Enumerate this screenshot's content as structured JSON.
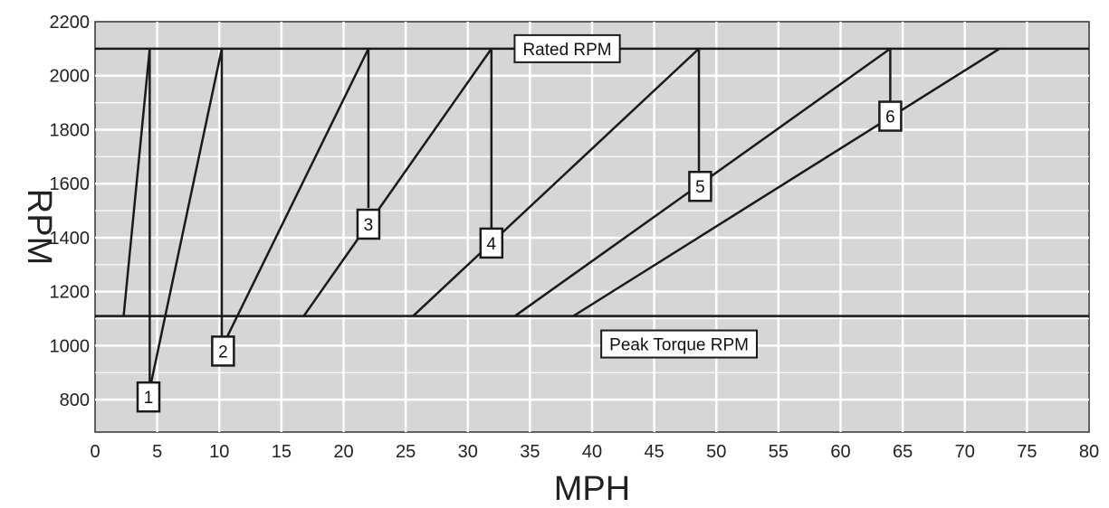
{
  "chart_data": {
    "type": "line",
    "title": "",
    "xlabel": "MPH",
    "ylabel": "RPM",
    "xlim": [
      0,
      80
    ],
    "ylim": [
      680,
      2200
    ],
    "x_ticks": [
      0,
      5,
      10,
      15,
      20,
      25,
      30,
      35,
      40,
      45,
      50,
      55,
      60,
      65,
      70,
      75,
      80
    ],
    "y_ticks": [
      800,
      1000,
      1200,
      1400,
      1600,
      1800,
      2000,
      2200
    ],
    "grid": true,
    "colors": {
      "plot_bg": "#d6d6d6",
      "grid": "#ffffff",
      "line": "#1a1a1a",
      "box_bg": "#ffffff"
    },
    "reference_lines": [
      {
        "label": "Rated RPM",
        "y": 2100
      },
      {
        "label": "Peak Torque RPM",
        "y": 1110
      }
    ],
    "gears": [
      {
        "label": "1",
        "x": [
          2.3,
          4.4
        ],
        "y": [
          1110,
          2100
        ],
        "shift_from": 2100,
        "shift_to": 860,
        "label_at": [
          4.3,
          810
        ]
      },
      {
        "label": "2",
        "x": [
          4.5,
          10.2
        ],
        "y": [
          860,
          2100
        ],
        "shift_from": 2100,
        "shift_to": 1030,
        "label_at": [
          10.3,
          980
        ]
      },
      {
        "label": "3",
        "x": [
          10.6,
          22.0
        ],
        "y": [
          1030,
          2100
        ],
        "shift_from": 2100,
        "shift_to": 1510,
        "label_at": [
          22.0,
          1450
        ]
      },
      {
        "label": "4",
        "x": [
          16.8,
          31.9
        ],
        "y": [
          1110,
          2100
        ],
        "shift_from": 2100,
        "shift_to": 1430,
        "label_at": [
          31.9,
          1380
        ]
      },
      {
        "label": "5",
        "x": [
          25.6,
          48.6
        ],
        "y": [
          1110,
          2100
        ],
        "shift_from": 2100,
        "shift_to": 1640,
        "label_at": [
          48.7,
          1590
        ]
      },
      {
        "label": "6",
        "x": [
          33.8,
          64.0
        ],
        "y": [
          1110,
          2100
        ],
        "shift_from": 2100,
        "shift_to": 1890,
        "label_at": [
          64.0,
          1850
        ]
      },
      {
        "label": "",
        "x": [
          38.5,
          72.8
        ],
        "y": [
          1110,
          2100
        ]
      }
    ]
  }
}
